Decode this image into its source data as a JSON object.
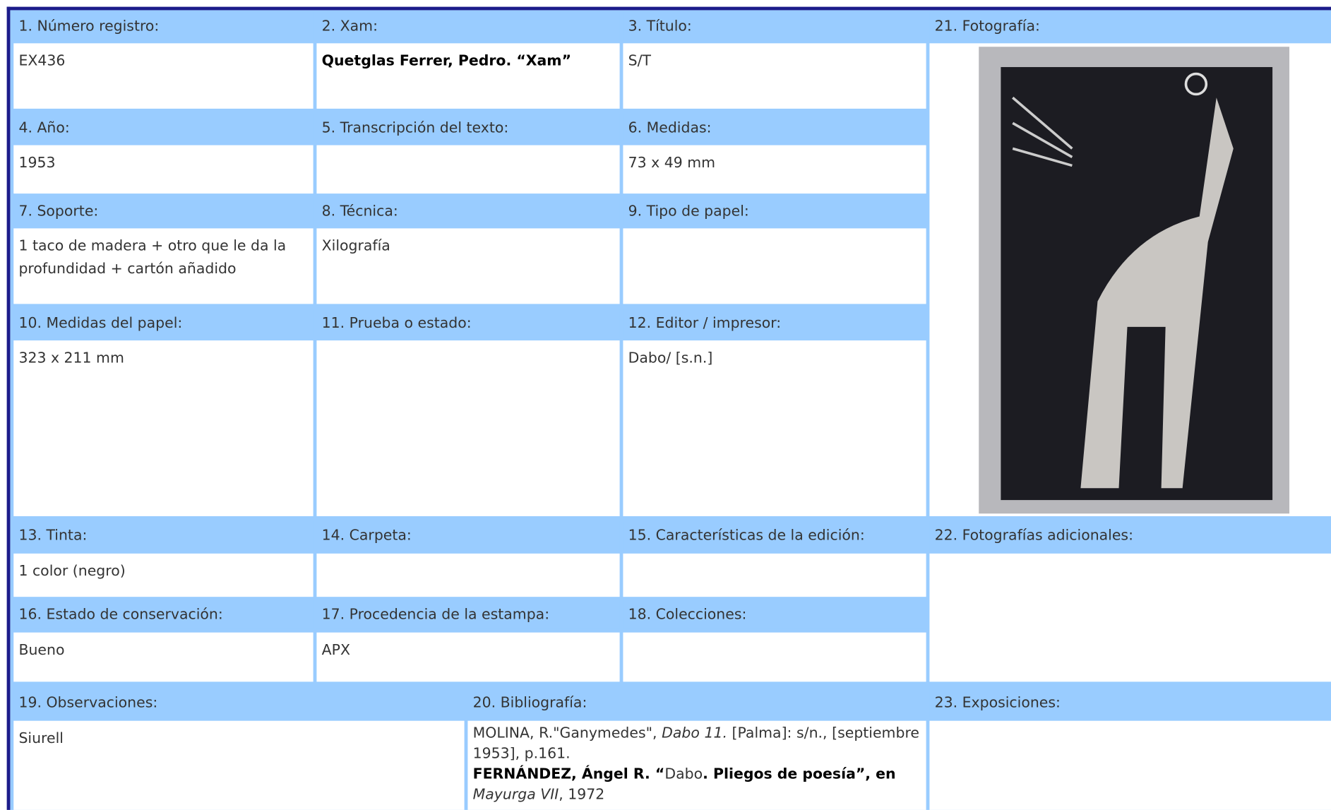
{
  "fields": [
    {
      "label": "1. Número registro:",
      "value": "EX436"
    },
    {
      "label": "2. Xam:",
      "value": "Quetglas Ferrer, Pedro. “Xam”"
    },
    {
      "label": "3. Título:",
      "value": "S/T"
    },
    {
      "label": "4. Año:",
      "value": "1953"
    },
    {
      "label": "5. Transcripción del texto:",
      "value": ""
    },
    {
      "label": "6. Medidas:",
      "value": "73 x 49 mm"
    },
    {
      "label": "7. Soporte:",
      "value": "1 taco de madera + otro que le da la profundidad + cartón añadido"
    },
    {
      "label": "8. Técnica:",
      "value": "Xilografía"
    },
    {
      "label": "9. Tipo de papel:",
      "value": ""
    },
    {
      "label": "10. Medidas del papel:",
      "value": "323 x 211 mm"
    },
    {
      "label": "11. Prueba o estado:",
      "value": ""
    },
    {
      "label": "12. Editor / impresor:",
      "value": "Dabo/ [s.n.]"
    },
    {
      "label": "13. Tinta:",
      "value": "1 color (negro)"
    },
    {
      "label": "14. Carpeta:",
      "value": ""
    },
    {
      "label": "15. Características de la edición:",
      "value": ""
    },
    {
      "label": "16. Estado de conservación:",
      "value": "Bueno"
    },
    {
      "label": "17. Procedencia de la estampa:",
      "value": "APX"
    },
    {
      "label": "18. Colecciones:",
      "value": ""
    },
    {
      "label": "19. Observaciones:",
      "value": "Siurell"
    }
  ],
  "bibliography": {
    "label": "20. Bibliografía:",
    "entries": [
      [
        "MOLINA, R.\"Ganymedes\", ",
        "Dabo 11.",
        " [Palma]: s/n., [septiembre 1953], p.161."
      ],
      [
        "FERNÁNDEZ, Ángel R. “",
        "Dabo",
        ". Pliegos de poesía”, en",
        "Mayurga VII",
        ", 1972"
      ]
    ]
  },
  "photo": {
    "label": "21. Fotografía:"
  },
  "additional_photos": {
    "label": "22. Fotografías adicionales:"
  },
  "exhibitions": {
    "label": "23. Exposiciones:"
  }
}
